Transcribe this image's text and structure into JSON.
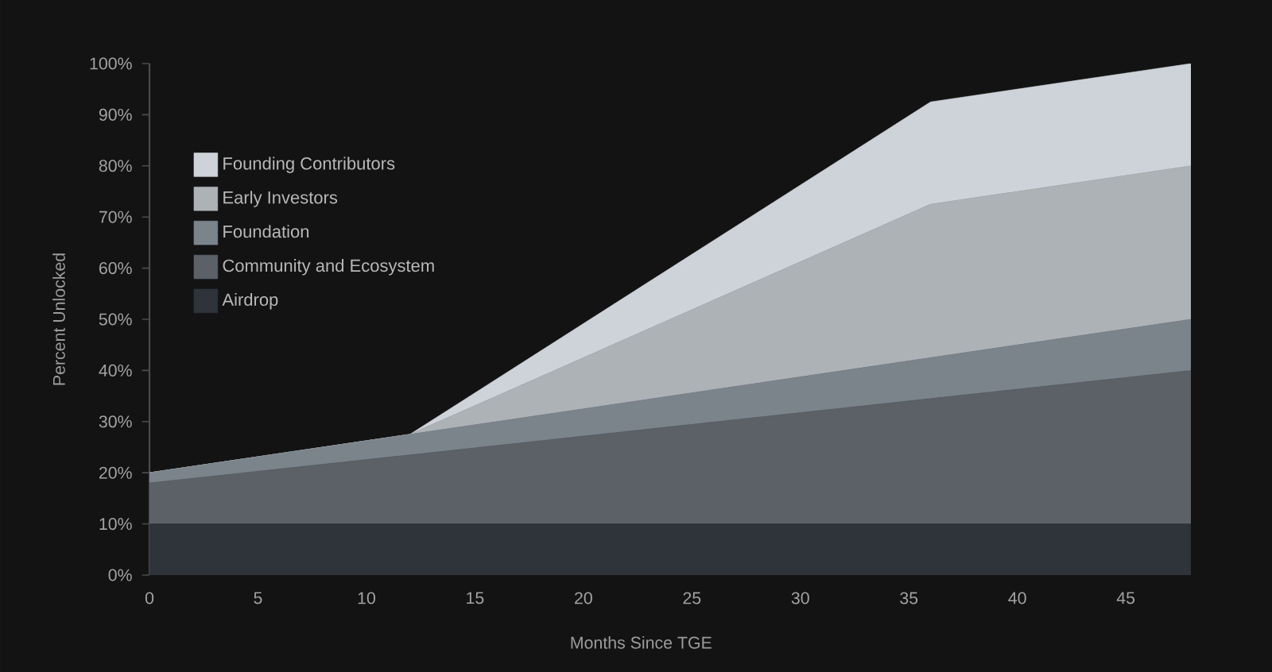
{
  "chart_data": {
    "type": "area",
    "stacked": true,
    "xlabel": "Months Since TGE",
    "ylabel": "Percent Unlocked",
    "legend": "top left",
    "x": [
      0,
      12,
      36,
      48
    ],
    "series": [
      {
        "name": "Airdrop",
        "color": "#2f343a",
        "values": [
          10,
          10,
          10,
          10
        ]
      },
      {
        "name": "Community and Ecosystem",
        "color": "#5b6167",
        "values": [
          8,
          13.5,
          24.5,
          30
        ]
      },
      {
        "name": "Foundation",
        "color": "#7b838b",
        "values": [
          2,
          4,
          8,
          10
        ]
      },
      {
        "name": "Early Investors",
        "color": "#adb2b7",
        "values": [
          0,
          0,
          30,
          30
        ]
      },
      {
        "name": "Founding Contributors",
        "color": "#cdd3d9",
        "values": [
          0,
          0,
          20,
          20
        ]
      }
    ],
    "xlim": [
      0,
      48
    ],
    "xticks": [
      0,
      5,
      10,
      15,
      20,
      25,
      30,
      35,
      40,
      45
    ],
    "ylim": [
      0,
      100
    ],
    "yticks": [
      {
        "value": 0,
        "label": "0%"
      },
      {
        "value": 10,
        "label": "10%"
      },
      {
        "value": 20,
        "label": "20%"
      },
      {
        "value": 30,
        "label": "30%"
      },
      {
        "value": 40,
        "label": "40%"
      },
      {
        "value": 50,
        "label": "50%"
      },
      {
        "value": 60,
        "label": "60%"
      },
      {
        "value": 70,
        "label": "70%"
      },
      {
        "value": 80,
        "label": "80%"
      },
      {
        "value": 90,
        "label": "90%"
      },
      {
        "value": 100,
        "label": "100%"
      }
    ]
  }
}
